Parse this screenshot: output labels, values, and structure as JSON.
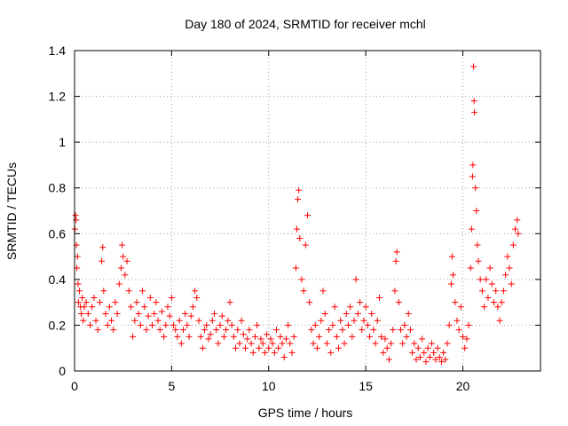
{
  "chart_data": {
    "type": "scatter",
    "title": "Day 180 of 2024, SRMTID for receiver mchl",
    "xlabel": "GPS time / hours",
    "ylabel": "SRMTID / TECUs",
    "xlim": [
      0,
      24
    ],
    "ylim": [
      0,
      1.4
    ],
    "xticks": [
      0,
      5,
      10,
      15,
      20
    ],
    "xtick_labels": [
      "0",
      "5",
      "10",
      "15",
      "20"
    ],
    "yticks": [
      0,
      0.2,
      0.4,
      0.6,
      0.8,
      1.0,
      1.2,
      1.4
    ],
    "ytick_labels": [
      "0",
      "0.2",
      "0.4",
      "0.6",
      "0.8",
      "1",
      "1.2",
      "1.4"
    ],
    "grid": true,
    "marker": "+",
    "color": "#ff0000",
    "series": [
      {
        "name": "SRMTID",
        "points": [
          [
            0.02,
            0.62
          ],
          [
            0.05,
            0.68
          ],
          [
            0.08,
            0.66
          ],
          [
            0.1,
            0.55
          ],
          [
            0.12,
            0.45
          ],
          [
            0.15,
            0.5
          ],
          [
            0.18,
            0.38
          ],
          [
            0.2,
            0.3
          ],
          [
            0.25,
            0.35
          ],
          [
            0.3,
            0.28
          ],
          [
            0.35,
            0.25
          ],
          [
            0.4,
            0.32
          ],
          [
            0.45,
            0.22
          ],
          [
            0.5,
            0.28
          ],
          [
            0.6,
            0.3
          ],
          [
            0.7,
            0.25
          ],
          [
            0.8,
            0.2
          ],
          [
            0.9,
            0.28
          ],
          [
            1.0,
            0.32
          ],
          [
            1.1,
            0.22
          ],
          [
            1.2,
            0.18
          ],
          [
            1.3,
            0.3
          ],
          [
            1.4,
            0.48
          ],
          [
            1.45,
            0.54
          ],
          [
            1.5,
            0.35
          ],
          [
            1.6,
            0.25
          ],
          [
            1.7,
            0.2
          ],
          [
            1.8,
            0.28
          ],
          [
            1.9,
            0.22
          ],
          [
            2.0,
            0.18
          ],
          [
            2.1,
            0.3
          ],
          [
            2.2,
            0.25
          ],
          [
            2.3,
            0.38
          ],
          [
            2.4,
            0.45
          ],
          [
            2.45,
            0.55
          ],
          [
            2.5,
            0.5
          ],
          [
            2.6,
            0.42
          ],
          [
            2.7,
            0.48
          ],
          [
            2.8,
            0.35
          ],
          [
            2.9,
            0.28
          ],
          [
            3.0,
            0.15
          ],
          [
            3.1,
            0.22
          ],
          [
            3.2,
            0.3
          ],
          [
            3.3,
            0.25
          ],
          [
            3.4,
            0.2
          ],
          [
            3.5,
            0.35
          ],
          [
            3.6,
            0.28
          ],
          [
            3.7,
            0.18
          ],
          [
            3.8,
            0.24
          ],
          [
            3.9,
            0.32
          ],
          [
            4.0,
            0.2
          ],
          [
            4.1,
            0.25
          ],
          [
            4.2,
            0.3
          ],
          [
            4.3,
            0.22
          ],
          [
            4.4,
            0.18
          ],
          [
            4.5,
            0.26
          ],
          [
            4.6,
            0.15
          ],
          [
            4.7,
            0.2
          ],
          [
            4.8,
            0.28
          ],
          [
            4.9,
            0.24
          ],
          [
            5.0,
            0.32
          ],
          [
            5.1,
            0.2
          ],
          [
            5.2,
            0.18
          ],
          [
            5.3,
            0.15
          ],
          [
            5.4,
            0.22
          ],
          [
            5.5,
            0.12
          ],
          [
            5.6,
            0.18
          ],
          [
            5.7,
            0.25
          ],
          [
            5.8,
            0.2
          ],
          [
            5.9,
            0.15
          ],
          [
            6.0,
            0.24
          ],
          [
            6.1,
            0.28
          ],
          [
            6.2,
            0.35
          ],
          [
            6.3,
            0.32
          ],
          [
            6.4,
            0.22
          ],
          [
            6.5,
            0.15
          ],
          [
            6.6,
            0.1
          ],
          [
            6.7,
            0.18
          ],
          [
            6.8,
            0.2
          ],
          [
            6.9,
            0.14
          ],
          [
            7.0,
            0.16
          ],
          [
            7.1,
            0.22
          ],
          [
            7.2,
            0.25
          ],
          [
            7.3,
            0.18
          ],
          [
            7.4,
            0.12
          ],
          [
            7.5,
            0.2
          ],
          [
            7.6,
            0.24
          ],
          [
            7.7,
            0.15
          ],
          [
            7.8,
            0.18
          ],
          [
            7.9,
            0.22
          ],
          [
            8.0,
            0.3
          ],
          [
            8.1,
            0.2
          ],
          [
            8.2,
            0.15
          ],
          [
            8.3,
            0.1
          ],
          [
            8.4,
            0.18
          ],
          [
            8.5,
            0.12
          ],
          [
            8.6,
            0.22
          ],
          [
            8.7,
            0.16
          ],
          [
            8.8,
            0.1
          ],
          [
            8.9,
            0.14
          ],
          [
            9.0,
            0.18
          ],
          [
            9.1,
            0.12
          ],
          [
            9.2,
            0.08
          ],
          [
            9.3,
            0.15
          ],
          [
            9.4,
            0.2
          ],
          [
            9.5,
            0.1
          ],
          [
            9.6,
            0.14
          ],
          [
            9.7,
            0.12
          ],
          [
            9.8,
            0.08
          ],
          [
            9.9,
            0.16
          ],
          [
            10.0,
            0.1
          ],
          [
            10.1,
            0.14
          ],
          [
            10.2,
            0.12
          ],
          [
            10.3,
            0.08
          ],
          [
            10.4,
            0.18
          ],
          [
            10.5,
            0.1
          ],
          [
            10.6,
            0.15
          ],
          [
            10.7,
            0.12
          ],
          [
            10.8,
            0.06
          ],
          [
            10.9,
            0.14
          ],
          [
            11.0,
            0.2
          ],
          [
            11.1,
            0.12
          ],
          [
            11.2,
            0.08
          ],
          [
            11.3,
            0.15
          ],
          [
            11.4,
            0.45
          ],
          [
            11.45,
            0.62
          ],
          [
            11.5,
            0.75
          ],
          [
            11.55,
            0.79
          ],
          [
            11.6,
            0.58
          ],
          [
            11.7,
            0.4
          ],
          [
            11.8,
            0.35
          ],
          [
            11.9,
            0.55
          ],
          [
            12.0,
            0.68
          ],
          [
            12.1,
            0.3
          ],
          [
            12.2,
            0.18
          ],
          [
            12.3,
            0.12
          ],
          [
            12.4,
            0.2
          ],
          [
            12.5,
            0.1
          ],
          [
            12.6,
            0.15
          ],
          [
            12.7,
            0.22
          ],
          [
            12.8,
            0.35
          ],
          [
            12.9,
            0.25
          ],
          [
            13.0,
            0.12
          ],
          [
            13.1,
            0.18
          ],
          [
            13.2,
            0.08
          ],
          [
            13.3,
            0.2
          ],
          [
            13.4,
            0.28
          ],
          [
            13.5,
            0.15
          ],
          [
            13.6,
            0.1
          ],
          [
            13.7,
            0.22
          ],
          [
            13.8,
            0.18
          ],
          [
            13.9,
            0.12
          ],
          [
            14.0,
            0.25
          ],
          [
            14.1,
            0.2
          ],
          [
            14.2,
            0.28
          ],
          [
            14.3,
            0.15
          ],
          [
            14.4,
            0.22
          ],
          [
            14.5,
            0.4
          ],
          [
            14.6,
            0.25
          ],
          [
            14.7,
            0.3
          ],
          [
            14.8,
            0.18
          ],
          [
            14.9,
            0.22
          ],
          [
            15.0,
            0.28
          ],
          [
            15.1,
            0.2
          ],
          [
            15.2,
            0.15
          ],
          [
            15.3,
            0.25
          ],
          [
            15.4,
            0.18
          ],
          [
            15.5,
            0.12
          ],
          [
            15.6,
            0.22
          ],
          [
            15.7,
            0.32
          ],
          [
            15.8,
            0.15
          ],
          [
            15.9,
            0.08
          ],
          [
            16.0,
            0.14
          ],
          [
            16.1,
            0.1
          ],
          [
            16.2,
            0.05
          ],
          [
            16.3,
            0.12
          ],
          [
            16.4,
            0.18
          ],
          [
            16.5,
            0.35
          ],
          [
            16.55,
            0.48
          ],
          [
            16.6,
            0.52
          ],
          [
            16.7,
            0.3
          ],
          [
            16.8,
            0.18
          ],
          [
            16.9,
            0.12
          ],
          [
            17.0,
            0.2
          ],
          [
            17.1,
            0.15
          ],
          [
            17.2,
            0.25
          ],
          [
            17.3,
            0.18
          ],
          [
            17.4,
            0.08
          ],
          [
            17.5,
            0.12
          ],
          [
            17.6,
            0.05
          ],
          [
            17.7,
            0.1
          ],
          [
            17.8,
            0.06
          ],
          [
            17.9,
            0.14
          ],
          [
            18.0,
            0.08
          ],
          [
            18.1,
            0.04
          ],
          [
            18.2,
            0.1
          ],
          [
            18.3,
            0.06
          ],
          [
            18.4,
            0.12
          ],
          [
            18.5,
            0.08
          ],
          [
            18.6,
            0.05
          ],
          [
            18.7,
            0.1
          ],
          [
            18.8,
            0.06
          ],
          [
            18.9,
            0.04
          ],
          [
            19.0,
            0.08
          ],
          [
            19.1,
            0.05
          ],
          [
            19.2,
            0.12
          ],
          [
            19.3,
            0.2
          ],
          [
            19.4,
            0.38
          ],
          [
            19.45,
            0.5
          ],
          [
            19.5,
            0.42
          ],
          [
            19.6,
            0.3
          ],
          [
            19.7,
            0.22
          ],
          [
            19.8,
            0.18
          ],
          [
            19.9,
            0.28
          ],
          [
            20.0,
            0.15
          ],
          [
            20.1,
            0.1
          ],
          [
            20.2,
            0.14
          ],
          [
            20.3,
            0.2
          ],
          [
            20.4,
            0.45
          ],
          [
            20.45,
            0.62
          ],
          [
            20.5,
            0.85
          ],
          [
            20.52,
            0.9
          ],
          [
            20.55,
            1.33
          ],
          [
            20.58,
            1.18
          ],
          [
            20.6,
            1.13
          ],
          [
            20.65,
            0.8
          ],
          [
            20.7,
            0.7
          ],
          [
            20.75,
            0.55
          ],
          [
            20.8,
            0.48
          ],
          [
            20.9,
            0.4
          ],
          [
            21.0,
            0.35
          ],
          [
            21.1,
            0.28
          ],
          [
            21.2,
            0.4
          ],
          [
            21.3,
            0.32
          ],
          [
            21.4,
            0.45
          ],
          [
            21.5,
            0.38
          ],
          [
            21.6,
            0.3
          ],
          [
            21.7,
            0.35
          ],
          [
            21.8,
            0.28
          ],
          [
            21.9,
            0.22
          ],
          [
            22.0,
            0.3
          ],
          [
            22.1,
            0.35
          ],
          [
            22.2,
            0.42
          ],
          [
            22.3,
            0.5
          ],
          [
            22.4,
            0.45
          ],
          [
            22.5,
            0.38
          ],
          [
            22.6,
            0.55
          ],
          [
            22.7,
            0.62
          ],
          [
            22.8,
            0.66
          ],
          [
            22.85,
            0.6
          ]
        ]
      }
    ]
  }
}
